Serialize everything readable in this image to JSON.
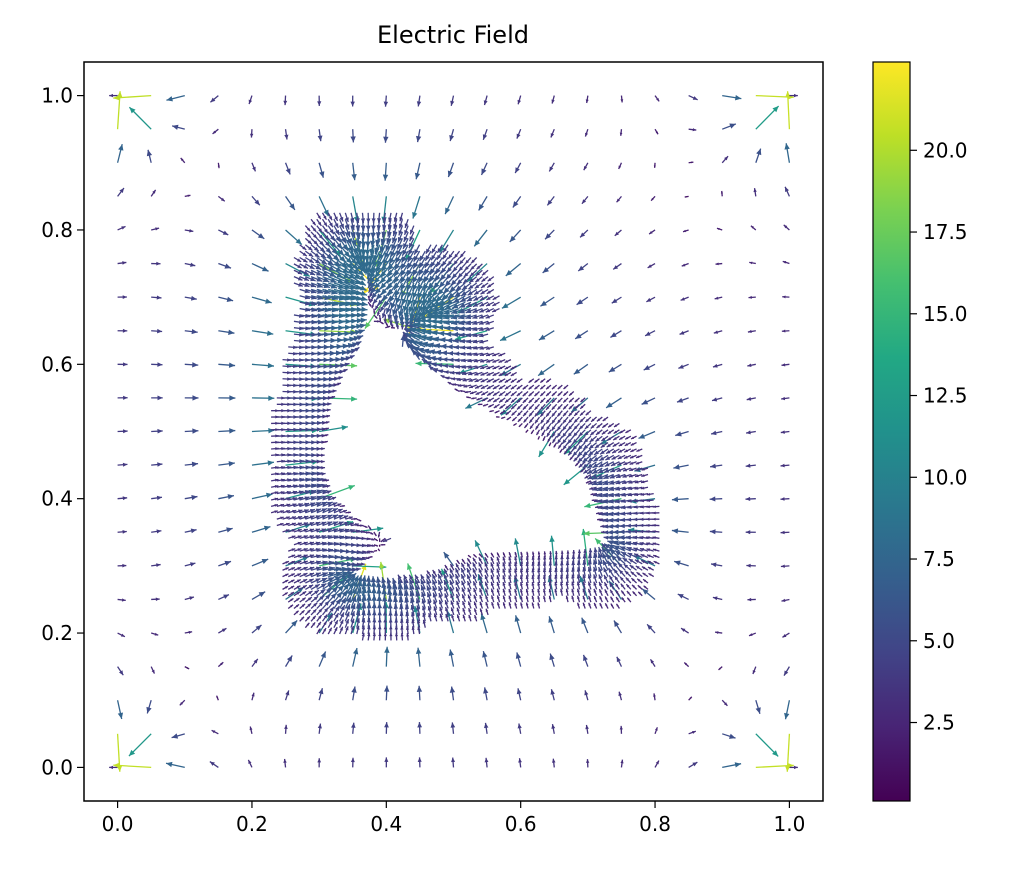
{
  "chart_data": {
    "type": "quiver",
    "title": "Electric Field",
    "xlabel": "",
    "ylabel": "",
    "xlim": [
      -0.05,
      1.05
    ],
    "ylim": [
      -0.05,
      1.05
    ],
    "xticks": [
      0.0,
      0.2,
      0.4,
      0.6,
      0.8,
      1.0
    ],
    "xtick_labels": [
      "0.0",
      "0.2",
      "0.4",
      "0.6",
      "0.8",
      "1.0"
    ],
    "yticks": [
      0.0,
      0.2,
      0.4,
      0.6,
      0.8,
      1.0
    ],
    "ytick_labels": [
      "0.0",
      "0.2",
      "0.4",
      "0.6",
      "0.8",
      "1.0"
    ],
    "grid": false,
    "colormap": "viridis",
    "colorbar": {
      "range": [
        0.1,
        22.7
      ],
      "ticks": [
        2.5,
        5.0,
        7.5,
        10.0,
        12.5,
        15.0,
        17.5,
        20.0
      ],
      "tick_labels": [
        "2.5",
        "5.0",
        "7.5",
        "10.0",
        "12.5",
        "15.0",
        "17.5",
        "20.0"
      ]
    },
    "grid_points": {
      "x_range": [
        0.0,
        1.0
      ],
      "y_range": [
        0.0,
        1.0
      ],
      "n": 21
    },
    "conductor_outline": [
      [
        0.36,
        0.77
      ],
      [
        0.38,
        0.75
      ],
      [
        0.38,
        0.72
      ],
      [
        0.37,
        0.7
      ],
      [
        0.38,
        0.66
      ],
      [
        0.4,
        0.65
      ],
      [
        0.43,
        0.66
      ],
      [
        0.45,
        0.68
      ],
      [
        0.48,
        0.69
      ],
      [
        0.47,
        0.67
      ],
      [
        0.44,
        0.65
      ],
      [
        0.42,
        0.63
      ],
      [
        0.44,
        0.61
      ],
      [
        0.47,
        0.59
      ],
      [
        0.52,
        0.55
      ],
      [
        0.57,
        0.52
      ],
      [
        0.63,
        0.49
      ],
      [
        0.67,
        0.47
      ],
      [
        0.7,
        0.44
      ],
      [
        0.71,
        0.41
      ],
      [
        0.72,
        0.37
      ],
      [
        0.74,
        0.33
      ],
      [
        0.72,
        0.32
      ],
      [
        0.66,
        0.32
      ],
      [
        0.6,
        0.32
      ],
      [
        0.54,
        0.32
      ],
      [
        0.5,
        0.3
      ],
      [
        0.45,
        0.28
      ],
      [
        0.4,
        0.27
      ],
      [
        0.36,
        0.27
      ],
      [
        0.33,
        0.28
      ],
      [
        0.36,
        0.3
      ],
      [
        0.39,
        0.32
      ],
      [
        0.41,
        0.34
      ],
      [
        0.38,
        0.36
      ],
      [
        0.34,
        0.38
      ],
      [
        0.31,
        0.41
      ],
      [
        0.3,
        0.45
      ],
      [
        0.31,
        0.5
      ],
      [
        0.31,
        0.54
      ],
      [
        0.33,
        0.58
      ],
      [
        0.35,
        0.62
      ],
      [
        0.35,
        0.66
      ],
      [
        0.35,
        0.7
      ],
      [
        0.35,
        0.74
      ]
    ],
    "corner_magnitude": 22.7
  }
}
